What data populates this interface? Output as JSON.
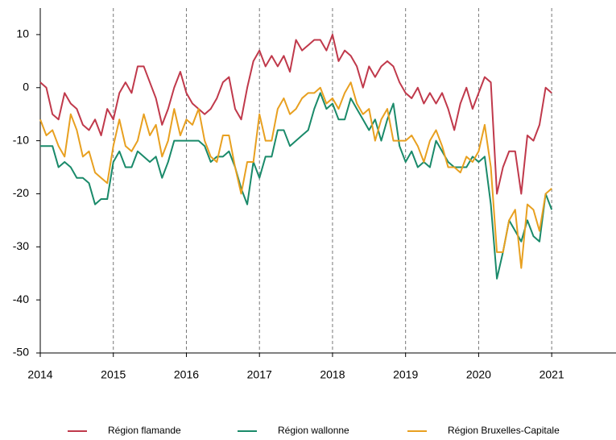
{
  "chart_data": {
    "type": "line",
    "x": [
      2014,
      2014.083,
      2014.167,
      2014.25,
      2014.333,
      2014.417,
      2014.5,
      2014.583,
      2014.667,
      2014.75,
      2014.833,
      2014.917,
      2015,
      2015.083,
      2015.167,
      2015.25,
      2015.333,
      2015.417,
      2015.5,
      2015.583,
      2015.667,
      2015.75,
      2015.833,
      2015.917,
      2016,
      2016.083,
      2016.167,
      2016.25,
      2016.333,
      2016.417,
      2016.5,
      2016.583,
      2016.667,
      2016.75,
      2016.833,
      2016.917,
      2017,
      2017.083,
      2017.167,
      2017.25,
      2017.333,
      2017.417,
      2017.5,
      2017.583,
      2017.667,
      2017.75,
      2017.833,
      2017.917,
      2018,
      2018.083,
      2018.167,
      2018.25,
      2018.333,
      2018.417,
      2018.5,
      2018.583,
      2018.667,
      2018.75,
      2018.833,
      2018.917,
      2019,
      2019.083,
      2019.167,
      2019.25,
      2019.333,
      2019.417,
      2019.5,
      2019.583,
      2019.667,
      2019.75,
      2019.833,
      2019.917,
      2020,
      2020.083,
      2020.167,
      2020.25,
      2020.333,
      2020.417,
      2020.5,
      2020.583,
      2020.667,
      2020.75,
      2020.833,
      2020.917,
      2021
    ],
    "series": [
      {
        "name": "Région flamande",
        "color": "#c0394b",
        "values": [
          1,
          0,
          -5,
          -6,
          -1,
          -3,
          -4,
          -7,
          -8,
          -6,
          -9,
          -4,
          -6,
          -1,
          1,
          -1,
          4,
          4,
          1,
          -2,
          -7,
          -4,
          0,
          3,
          -1,
          -3,
          -4,
          -5,
          -4,
          -2,
          1,
          2,
          -4,
          -6,
          0,
          5,
          7,
          4,
          6,
          4,
          6,
          3,
          9,
          7,
          8,
          9,
          9,
          7,
          10,
          5,
          7,
          6,
          4,
          0,
          4,
          2,
          4,
          5,
          4,
          1,
          -1,
          -2,
          0,
          -3,
          -1,
          -3,
          -1,
          -4,
          -8,
          -3,
          0,
          -4,
          -1,
          2,
          1,
          -20,
          -15,
          -12,
          -12,
          -20,
          -9,
          -10,
          -7,
          0,
          -1
        ]
      },
      {
        "name": "Région wallonne",
        "color": "#1a8a6a",
        "values": [
          -11,
          -11,
          -11,
          -15,
          -14,
          -15,
          -17,
          -17,
          -18,
          -22,
          -21,
          -21,
          -14,
          -12,
          -15,
          -15,
          -12,
          -13,
          -14,
          -13,
          -17,
          -14,
          -10,
          -10,
          -10,
          -10,
          -10,
          -11,
          -14,
          -13,
          -13,
          -12,
          -15,
          -19,
          -22,
          -14,
          -17,
          -13,
          -13,
          -8,
          -8,
          -11,
          -10,
          -9,
          -8,
          -4,
          -1,
          -4,
          -3,
          -6,
          -6,
          -2,
          -4,
          -6,
          -8,
          -6,
          -10,
          -6,
          -3,
          -11,
          -14,
          -12,
          -15,
          -14,
          -15,
          -10,
          -12,
          -14,
          -15,
          -15,
          -15,
          -13,
          -14,
          -13,
          -22,
          -36,
          -31,
          -25,
          -27,
          -29,
          -25,
          -28,
          -29,
          -20,
          -23
        ]
      },
      {
        "name": "Région Bruxelles-Capitale",
        "color": "#e8a020",
        "values": [
          -6,
          -9,
          -8,
          -11,
          -13,
          -5,
          -8,
          -13,
          -12,
          -16,
          -17,
          -18,
          -11,
          -6,
          -11,
          -12,
          -10,
          -5,
          -9,
          -7,
          -13,
          -10,
          -4,
          -9,
          -6,
          -7,
          -4,
          -10,
          -13,
          -14,
          -9,
          -9,
          -15,
          -20,
          -14,
          -14,
          -5,
          -10,
          -10,
          -4,
          -2,
          -5,
          -4,
          -2,
          -1,
          -1,
          0,
          -3,
          -2,
          -4,
          -1,
          1,
          -3,
          -5,
          -4,
          -10,
          -6,
          -4,
          -10,
          -10,
          -10,
          -9,
          -11,
          -14,
          -10,
          -8,
          -11,
          -15,
          -15,
          -16,
          -13,
          -14,
          -12,
          -7,
          -15,
          -31,
          -31,
          -25,
          -23,
          -34,
          -22,
          -23,
          -27,
          -20,
          -19
        ]
      }
    ],
    "xlim": [
      2014,
      2021.88
    ],
    "xticks": [
      2014,
      2015,
      2016,
      2017,
      2018,
      2019,
      2020,
      2021
    ],
    "ylim": [
      -50,
      15
    ],
    "yticks": [
      -50,
      -40,
      -30,
      -20,
      -10,
      0,
      10
    ],
    "grid": "x",
    "legend": "bottom"
  }
}
